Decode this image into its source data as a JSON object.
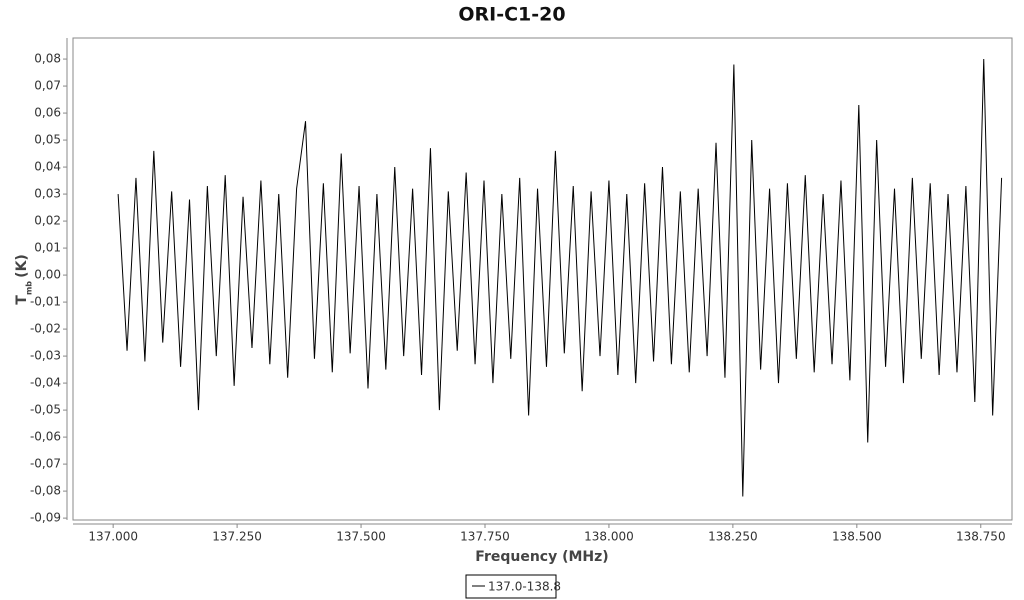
{
  "chart_data": {
    "type": "line",
    "title": "ORI-C1-20",
    "x_label": "Frequency (MHz)",
    "y_label": "T",
    "y_label_sub": "mb",
    "y_label_unit": "(K)",
    "xlim": [
      136.919,
      138.813
    ],
    "ylim": [
      -0.0907,
      0.0878
    ],
    "xticks": [
      {
        "value": 137.0,
        "label": "137.000"
      },
      {
        "value": 137.25,
        "label": "137.250"
      },
      {
        "value": 137.5,
        "label": "137.500"
      },
      {
        "value": 137.75,
        "label": "137.750"
      },
      {
        "value": 138.0,
        "label": "138.000"
      },
      {
        "value": 138.25,
        "label": "138.250"
      },
      {
        "value": 138.5,
        "label": "138.500"
      },
      {
        "value": 138.75,
        "label": "138.750"
      }
    ],
    "yticks": [
      {
        "value": 0.08,
        "label": "0,08"
      },
      {
        "value": 0.07,
        "label": "0,07"
      },
      {
        "value": 0.06,
        "label": "0,06"
      },
      {
        "value": 0.05,
        "label": "0,05"
      },
      {
        "value": 0.04,
        "label": "0,04"
      },
      {
        "value": 0.03,
        "label": "0,03"
      },
      {
        "value": 0.02,
        "label": "0,02"
      },
      {
        "value": 0.01,
        "label": "0,01"
      },
      {
        "value": 0.0,
        "label": "0,00"
      },
      {
        "value": -0.01,
        "label": "-0,01"
      },
      {
        "value": -0.02,
        "label": "-0,02"
      },
      {
        "value": -0.03,
        "label": "-0,03"
      },
      {
        "value": -0.04,
        "label": "-0,04"
      },
      {
        "value": -0.05,
        "label": "-0,05"
      },
      {
        "value": -0.06,
        "label": "-0,06"
      },
      {
        "value": -0.07,
        "label": "-0,07"
      },
      {
        "value": -0.08,
        "label": "-0,08"
      },
      {
        "value": -0.09,
        "label": "-0,09"
      }
    ],
    "x": [
      137.01,
      137.028,
      137.046,
      137.064,
      137.082,
      137.1,
      137.118,
      137.136,
      137.154,
      137.172,
      137.19,
      137.208,
      137.226,
      137.244,
      137.262,
      137.28,
      137.298,
      137.316,
      137.334,
      137.352,
      137.37,
      137.388,
      137.406,
      137.424,
      137.442,
      137.46,
      137.478,
      137.496,
      137.514,
      137.532,
      137.55,
      137.568,
      137.586,
      137.604,
      137.622,
      137.64,
      137.658,
      137.676,
      137.694,
      137.712,
      137.73,
      137.748,
      137.766,
      137.784,
      137.802,
      137.82,
      137.838,
      137.856,
      137.874,
      137.892,
      137.91,
      137.928,
      137.946,
      137.964,
      137.982,
      138.0,
      138.018,
      138.036,
      138.054,
      138.072,
      138.09,
      138.108,
      138.126,
      138.144,
      138.162,
      138.18,
      138.198,
      138.216,
      138.234,
      138.252,
      138.27,
      138.288,
      138.306,
      138.324,
      138.342,
      138.36,
      138.378,
      138.396,
      138.414,
      138.432,
      138.45,
      138.468,
      138.486,
      138.504,
      138.522,
      138.54,
      138.558,
      138.576,
      138.594,
      138.612,
      138.63,
      138.648,
      138.666,
      138.684,
      138.702,
      138.72,
      138.738,
      138.756,
      138.774,
      138.792
    ],
    "series": [
      {
        "name": "137.0-138.8",
        "color": "#000000",
        "values": [
          0.03,
          -0.028,
          0.036,
          -0.032,
          0.046,
          -0.025,
          0.031,
          -0.034,
          0.028,
          -0.05,
          0.033,
          -0.03,
          0.037,
          -0.041,
          0.029,
          -0.027,
          0.035,
          -0.033,
          0.03,
          -0.038,
          0.032,
          0.057,
          -0.031,
          0.034,
          -0.036,
          0.045,
          -0.029,
          0.033,
          -0.042,
          0.03,
          -0.035,
          0.04,
          -0.03,
          0.032,
          -0.037,
          0.047,
          -0.05,
          0.031,
          -0.028,
          0.038,
          -0.033,
          0.035,
          -0.04,
          0.03,
          -0.031,
          0.036,
          -0.052,
          0.032,
          -0.034,
          0.046,
          -0.029,
          0.033,
          -0.043,
          0.031,
          -0.03,
          0.035,
          -0.037,
          0.03,
          -0.04,
          0.034,
          -0.032,
          0.04,
          -0.033,
          0.031,
          -0.036,
          0.032,
          -0.03,
          0.049,
          -0.038,
          0.078,
          -0.082,
          0.05,
          -0.035,
          0.032,
          -0.04,
          0.034,
          -0.031,
          0.037,
          -0.036,
          0.03,
          -0.033,
          0.035,
          -0.039,
          0.063,
          -0.062,
          0.05,
          -0.034,
          0.032,
          -0.04,
          0.036,
          -0.031,
          0.034,
          -0.037,
          0.03,
          -0.036,
          0.033,
          -0.047,
          0.08,
          -0.052,
          0.036
        ]
      }
    ],
    "legend": "bottom"
  }
}
